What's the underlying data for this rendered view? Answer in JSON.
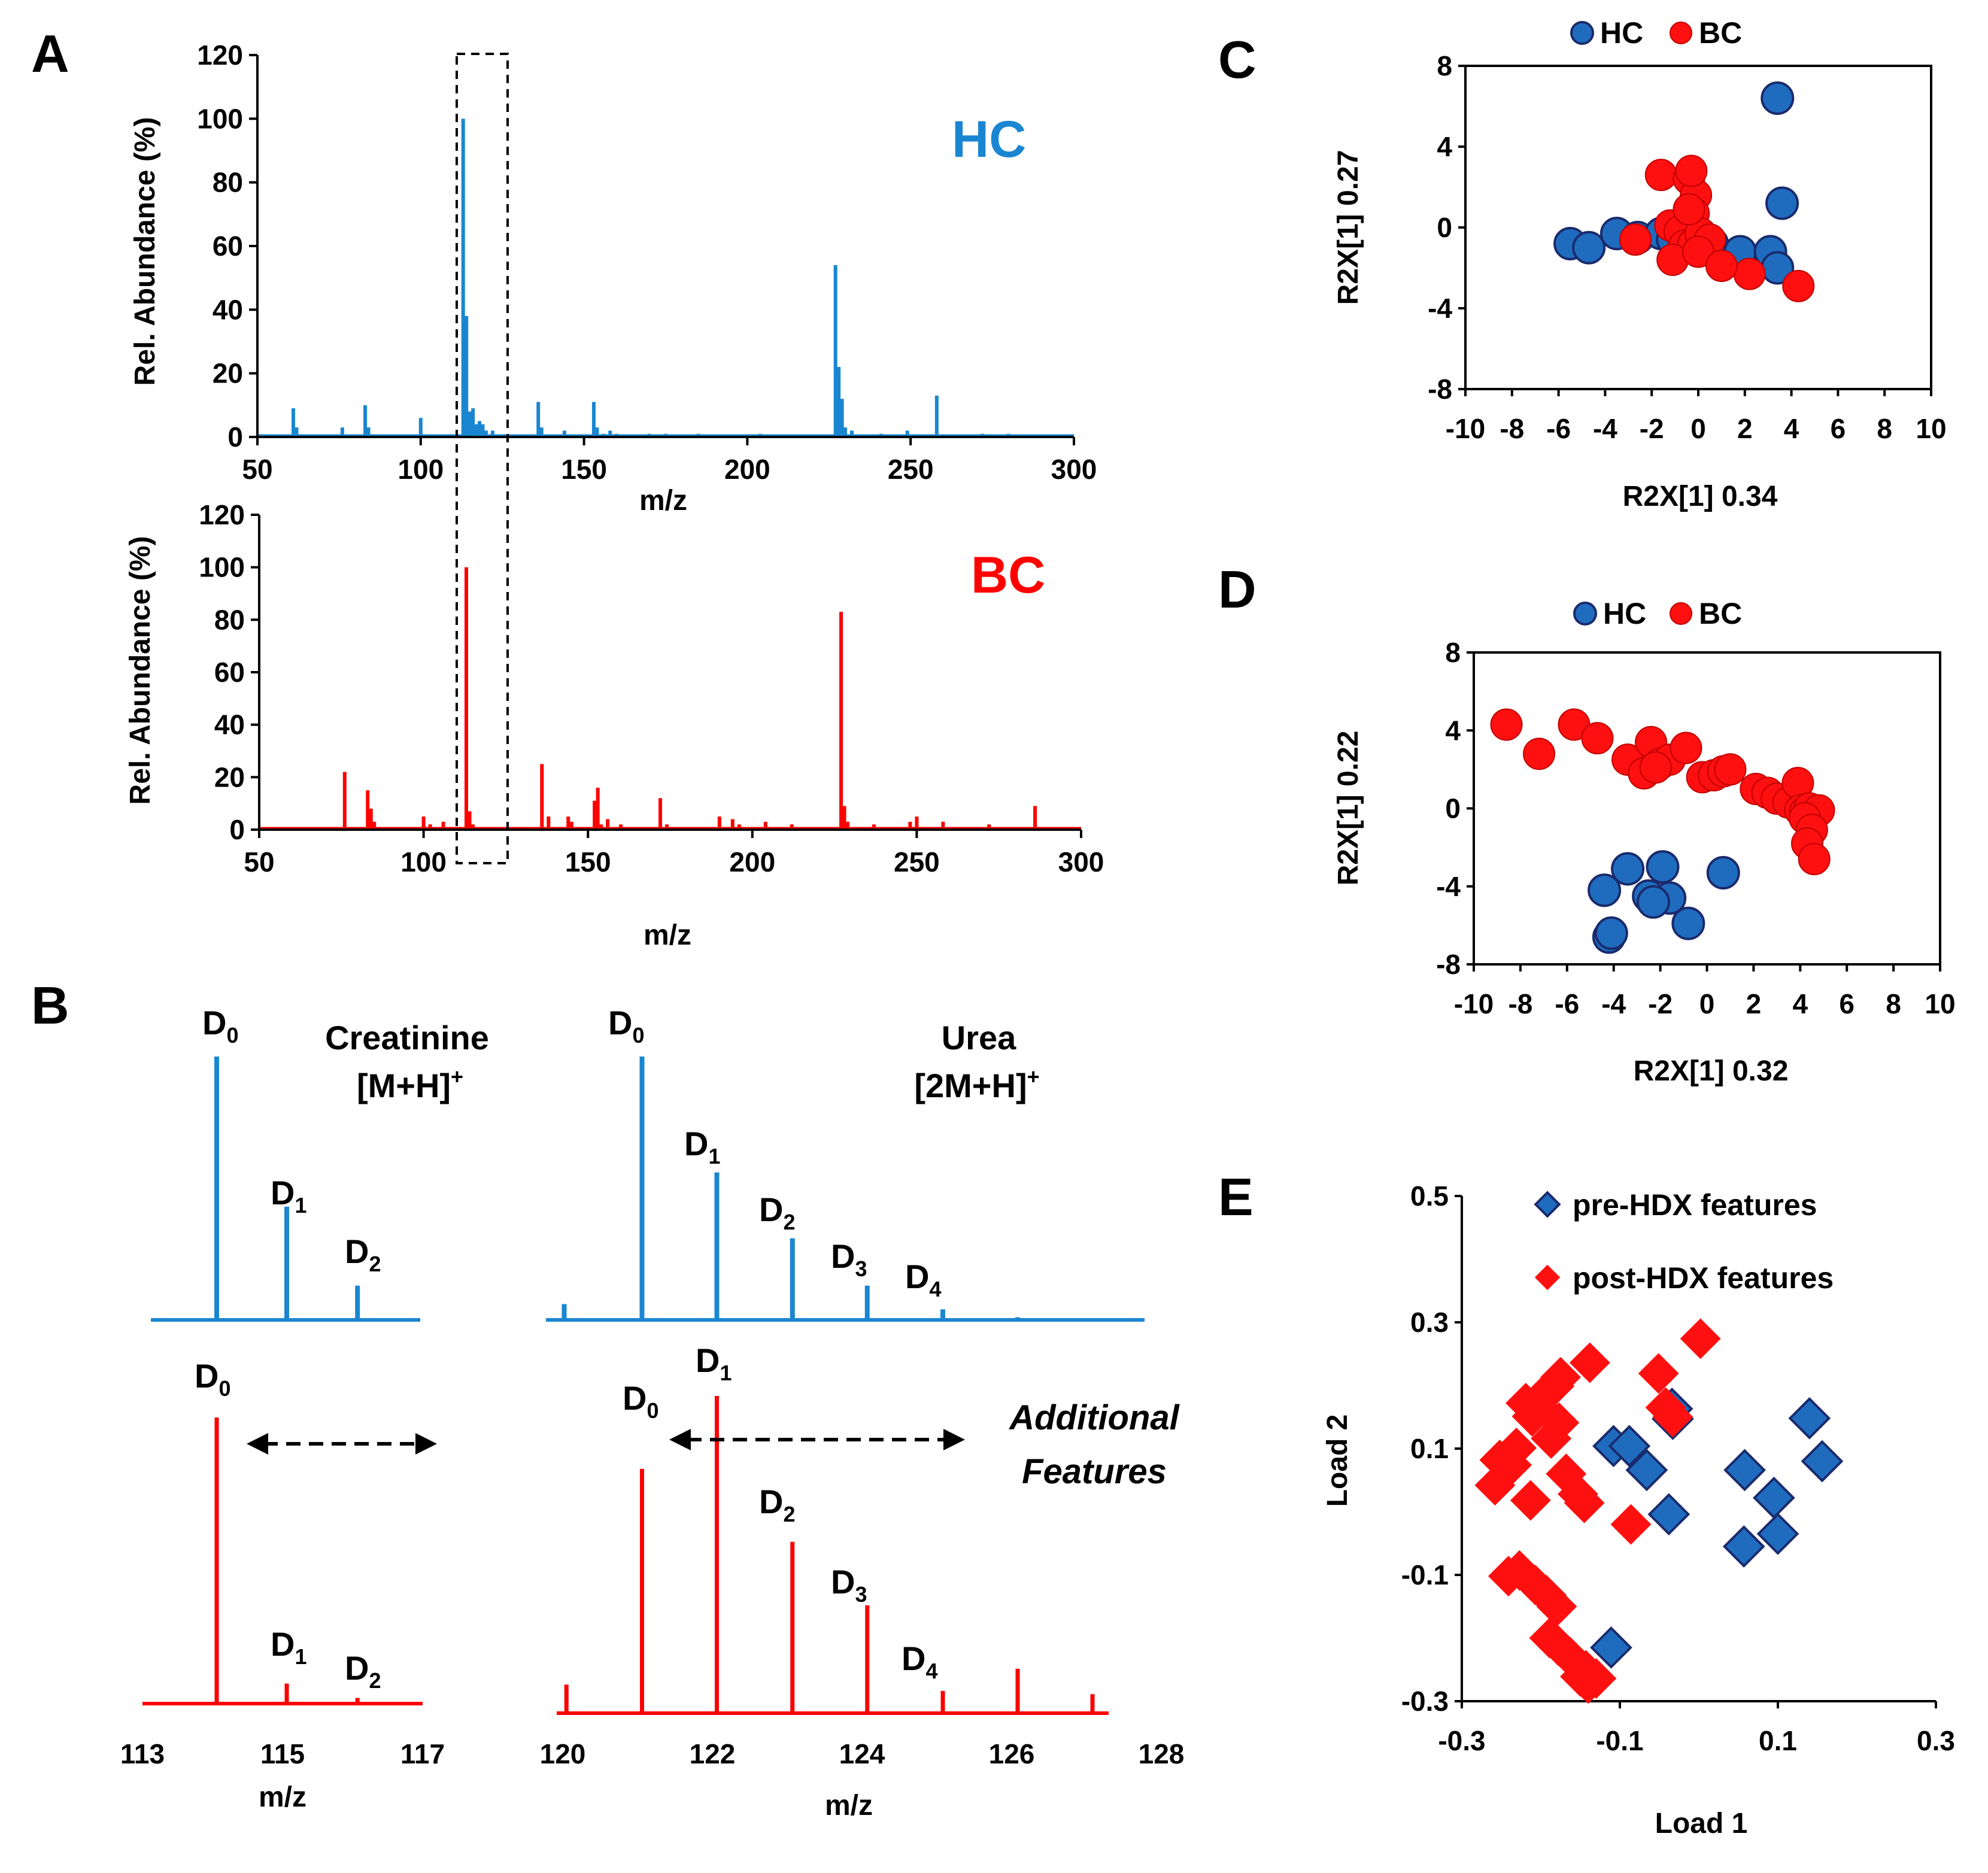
{
  "colors": {
    "hc": "#1a86d1",
    "bc": "#ff0000",
    "hc_marker": "#1f6cbf",
    "bc_marker": "#ff1010",
    "edge": "#1a2a6c"
  },
  "panel_labels": {
    "a": "A",
    "b": "B",
    "c": "C",
    "d": "D",
    "e": "E"
  },
  "chart_data": [
    {
      "id": "A-HC",
      "type": "bar",
      "title": "HC",
      "xlabel": "m/z",
      "ylabel": "Rel. Abundance (%)",
      "xlim": [
        50,
        300
      ],
      "ylim": [
        0,
        120
      ],
      "xticks": [
        "50",
        "100",
        "150",
        "200",
        "250",
        "300"
      ],
      "yticks": [
        "0",
        "20",
        "40",
        "60",
        "80",
        "100",
        "120"
      ],
      "peaks": [
        [
          61,
          9
        ],
        [
          62,
          3
        ],
        [
          76,
          3
        ],
        [
          83,
          10
        ],
        [
          84,
          3
        ],
        [
          100,
          6
        ],
        [
          113,
          100
        ],
        [
          114,
          38
        ],
        [
          115,
          8
        ],
        [
          116,
          9
        ],
        [
          117,
          4
        ],
        [
          118,
          5
        ],
        [
          119,
          4
        ],
        [
          120,
          2
        ],
        [
          122,
          2
        ],
        [
          136,
          11
        ],
        [
          137,
          3
        ],
        [
          144,
          2
        ],
        [
          153,
          11
        ],
        [
          154,
          3
        ],
        [
          156,
          1
        ],
        [
          158,
          2
        ],
        [
          160,
          1
        ],
        [
          170,
          1
        ],
        [
          175,
          1
        ],
        [
          185,
          1
        ],
        [
          204,
          1
        ],
        [
          227,
          54
        ],
        [
          228,
          22
        ],
        [
          229,
          12
        ],
        [
          230,
          3
        ],
        [
          232,
          2
        ],
        [
          241,
          1
        ],
        [
          249,
          2
        ],
        [
          258,
          13
        ],
        [
          272,
          1
        ],
        [
          280,
          1
        ]
      ]
    },
    {
      "id": "A-BC",
      "type": "bar",
      "title": "BC",
      "xlabel": "m/z",
      "ylabel": "Rel. Abundance (%)",
      "xlim": [
        50,
        300
      ],
      "ylim": [
        0,
        120
      ],
      "xticks": [
        "50",
        "100",
        "150",
        "200",
        "250",
        "300"
      ],
      "yticks": [
        "0",
        "20",
        "40",
        "60",
        "80",
        "100",
        "120"
      ],
      "peaks": [
        [
          61,
          1
        ],
        [
          76,
          22
        ],
        [
          83,
          15
        ],
        [
          84,
          8
        ],
        [
          85,
          3
        ],
        [
          100,
          5
        ],
        [
          102,
          2
        ],
        [
          106,
          3
        ],
        [
          113,
          100
        ],
        [
          114,
          7
        ],
        [
          115,
          2
        ],
        [
          119,
          1
        ],
        [
          122,
          1
        ],
        [
          136,
          25
        ],
        [
          138,
          5
        ],
        [
          144,
          5
        ],
        [
          145,
          3
        ],
        [
          152,
          11
        ],
        [
          153,
          16
        ],
        [
          154,
          2
        ],
        [
          156,
          4
        ],
        [
          160,
          2
        ],
        [
          172,
          12
        ],
        [
          174,
          2
        ],
        [
          190,
          5
        ],
        [
          194,
          4
        ],
        [
          196,
          2
        ],
        [
          204,
          3
        ],
        [
          212,
          2
        ],
        [
          227,
          83
        ],
        [
          228,
          9
        ],
        [
          229,
          3
        ],
        [
          237,
          2
        ],
        [
          248,
          3
        ],
        [
          250,
          5
        ],
        [
          258,
          3
        ],
        [
          272,
          2
        ],
        [
          286,
          9
        ]
      ]
    },
    {
      "id": "B-creatinine",
      "type": "bar",
      "xlabel": "m/z",
      "xlim": [
        113,
        117
      ],
      "xticks": [
        "113",
        "115",
        "117"
      ],
      "annotation": "Creatinine",
      "annotation2": "[M+H]",
      "hc_peaks": [
        [
          114.06,
          100
        ],
        [
          115.06,
          43
        ],
        [
          116.07,
          13
        ]
      ],
      "bc_peaks": [
        [
          114.06,
          100
        ],
        [
          115.06,
          7
        ],
        [
          116.07,
          2
        ]
      ]
    },
    {
      "id": "B-urea",
      "type": "bar",
      "xlabel": "m/z",
      "xlim": [
        120,
        128
      ],
      "xticks": [
        "120",
        "122",
        "124",
        "126",
        "128"
      ],
      "annotation": "Urea",
      "annotation2": "[2M+H]",
      "annotation3": "Additional",
      "annotation4": "Features",
      "hc_peaks": [
        [
          120.02,
          6
        ],
        [
          121.06,
          100
        ],
        [
          122.06,
          56
        ],
        [
          123.07,
          31
        ],
        [
          124.07,
          13
        ],
        [
          125.08,
          4
        ],
        [
          126.08,
          1
        ]
      ],
      "bc_peaks": [
        [
          120.05,
          9
        ],
        [
          121.06,
          77
        ],
        [
          122.06,
          100
        ],
        [
          123.07,
          54
        ],
        [
          124.07,
          34
        ],
        [
          125.08,
          7
        ],
        [
          126.08,
          14
        ],
        [
          127.08,
          6
        ]
      ]
    },
    {
      "id": "C",
      "type": "scatter",
      "xlabel": "R2X[1] 0.34",
      "ylabel": "R2X[1] 0.27",
      "xlim": [
        -10,
        10
      ],
      "ylim": [
        -8,
        8
      ],
      "xticks": [
        "-10",
        "-8",
        "-6",
        "-4",
        "-2",
        "0",
        "2",
        "4",
        "6",
        "8",
        "10"
      ],
      "yticks": [
        "-8",
        "-4",
        "0",
        "4",
        "8"
      ],
      "legend": [
        "HC",
        "BC"
      ],
      "series": [
        {
          "name": "HC",
          "points": [
            [
              -5.5,
              -0.8
            ],
            [
              -4.7,
              -1.0
            ],
            [
              -3.5,
              -0.3
            ],
            [
              -2.6,
              -0.5
            ],
            [
              -1.6,
              -0.3
            ],
            [
              -1.1,
              -0.6
            ],
            [
              -0.5,
              -0.7
            ],
            [
              0.0,
              -0.6
            ],
            [
              0.6,
              -0.8
            ],
            [
              1.8,
              -1.2
            ],
            [
              3.1,
              -1.2
            ],
            [
              3.4,
              -2.0
            ],
            [
              3.6,
              1.2
            ],
            [
              3.4,
              6.4
            ]
          ]
        },
        {
          "name": "BC",
          "points": [
            [
              -2.7,
              -0.6
            ],
            [
              -1.6,
              2.6
            ],
            [
              -0.4,
              2.4
            ],
            [
              -0.1,
              1.6
            ],
            [
              -0.2,
              0.7
            ],
            [
              -0.3,
              2.8
            ],
            [
              -1.2,
              0.1
            ],
            [
              -0.8,
              -0.2
            ],
            [
              -0.6,
              -0.9
            ],
            [
              -0.2,
              -0.8
            ],
            [
              0.1,
              -0.3
            ],
            [
              0.3,
              -1.1
            ],
            [
              0.5,
              -0.6
            ],
            [
              -1.1,
              -1.6
            ],
            [
              0.0,
              -1.2
            ],
            [
              2.2,
              -2.3
            ],
            [
              4.3,
              -2.9
            ],
            [
              1.0,
              -1.9
            ],
            [
              -0.4,
              0.9
            ]
          ]
        }
      ]
    },
    {
      "id": "D",
      "type": "scatter",
      "xlabel": "R2X[1] 0.32",
      "ylabel": "R2X[1] 0.22",
      "xlim": [
        -10,
        10
      ],
      "ylim": [
        -8,
        8
      ],
      "xticks": [
        "-10",
        "-8",
        "-6",
        "-4",
        "-2",
        "0",
        "2",
        "4",
        "6",
        "8",
        "10"
      ],
      "yticks": [
        "-8",
        "-4",
        "0",
        "4",
        "8"
      ],
      "legend": [
        "HC",
        "BC"
      ],
      "series": [
        {
          "name": "HC",
          "points": [
            [
              -4.4,
              -4.2
            ],
            [
              -3.4,
              -3.1
            ],
            [
              -2.5,
              -4.5
            ],
            [
              -1.9,
              -3.0
            ],
            [
              -1.6,
              -4.6
            ],
            [
              -2.3,
              -4.8
            ],
            [
              -0.8,
              -5.9
            ],
            [
              -4.2,
              -6.6
            ],
            [
              -4.1,
              -6.4
            ],
            [
              0.7,
              -3.3
            ]
          ]
        },
        {
          "name": "BC",
          "points": [
            [
              -8.6,
              4.3
            ],
            [
              -7.2,
              2.8
            ],
            [
              -5.7,
              4.3
            ],
            [
              -4.7,
              3.6
            ],
            [
              -3.4,
              2.5
            ],
            [
              -2.4,
              3.4
            ],
            [
              -2.0,
              2.3
            ],
            [
              -1.6,
              2.5
            ],
            [
              -2.7,
              1.8
            ],
            [
              -2.2,
              2.1
            ],
            [
              -0.9,
              3.1
            ],
            [
              -0.2,
              1.6
            ],
            [
              0.3,
              1.7
            ],
            [
              0.7,
              1.9
            ],
            [
              1.0,
              2.0
            ],
            [
              2.1,
              1.0
            ],
            [
              2.6,
              0.8
            ],
            [
              3.0,
              0.5
            ],
            [
              3.5,
              0.3
            ],
            [
              3.9,
              1.3
            ],
            [
              4.0,
              -0.1
            ],
            [
              4.2,
              -0.2
            ],
            [
              4.4,
              0.0
            ],
            [
              4.8,
              -0.1
            ],
            [
              4.2,
              -0.5
            ],
            [
              4.5,
              -1.1
            ],
            [
              4.3,
              -1.8
            ],
            [
              4.6,
              -2.6
            ]
          ]
        }
      ]
    },
    {
      "id": "E",
      "type": "scatter",
      "xlabel": "Load 1",
      "ylabel": "Load 2",
      "xlim": [
        -0.3,
        0.3
      ],
      "ylim": [
        -0.3,
        0.5
      ],
      "xticks": [
        "-0.3",
        "-0.1",
        "0.1",
        "0.3"
      ],
      "yticks": [
        "-0.3",
        "-0.1",
        "0.1",
        "0.3",
        "0.5"
      ],
      "legend": [
        "pre-HDX features",
        "post-HDX features"
      ],
      "series": [
        {
          "name": "pre-HDX features",
          "points": [
            [
              -0.108,
              0.104
            ],
            [
              -0.088,
              0.104
            ],
            [
              -0.033,
              0.147
            ],
            [
              -0.034,
              0.163
            ],
            [
              -0.066,
              0.066
            ],
            [
              -0.038,
              -0.004
            ],
            [
              0.058,
              0.066
            ],
            [
              0.095,
              0.022
            ],
            [
              0.14,
              0.148
            ],
            [
              0.156,
              0.08
            ],
            [
              0.1,
              -0.035
            ],
            [
              0.057,
              -0.055
            ],
            [
              -0.111,
              -0.215
            ]
          ]
        },
        {
          "name": "post-HDX features",
          "points": [
            [
              -0.252,
              0.082
            ],
            [
              -0.258,
              0.042
            ],
            [
              -0.237,
              0.074
            ],
            [
              -0.231,
              0.101
            ],
            [
              -0.219,
              0.172
            ],
            [
              -0.211,
              0.151
            ],
            [
              -0.203,
              0.167
            ],
            [
              -0.197,
              0.184
            ],
            [
              -0.183,
              0.199
            ],
            [
              -0.175,
              0.213
            ],
            [
              -0.138,
              0.236
            ],
            [
              -0.187,
              0.116
            ],
            [
              -0.177,
              0.141
            ],
            [
              -0.168,
              0.06
            ],
            [
              -0.153,
              0.028
            ],
            [
              -0.145,
              0.014
            ],
            [
              -0.213,
              0.018
            ],
            [
              -0.051,
              0.219
            ],
            [
              -0.042,
              0.165
            ],
            [
              -0.033,
              0.15
            ],
            [
              0.002,
              0.274
            ],
            [
              -0.086,
              -0.02
            ],
            [
              -0.241,
              -0.102
            ],
            [
              -0.227,
              -0.093
            ],
            [
              -0.207,
              -0.116
            ],
            [
              -0.193,
              -0.132
            ],
            [
              -0.18,
              -0.15
            ],
            [
              -0.189,
              -0.2
            ],
            [
              -0.178,
              -0.212
            ],
            [
              -0.163,
              -0.23
            ],
            [
              -0.143,
              -0.251
            ],
            [
              -0.13,
              -0.264
            ],
            [
              -0.14,
              -0.272
            ],
            [
              -0.15,
              -0.261
            ]
          ]
        }
      ]
    }
  ],
  "isotopes": {
    "d0": "D",
    "d0s": "0",
    "d1": "D",
    "d1s": "1",
    "d2": "D",
    "d2s": "2",
    "d3": "D",
    "d3s": "3",
    "d4": "D",
    "d4s": "4",
    "plus": "+"
  }
}
